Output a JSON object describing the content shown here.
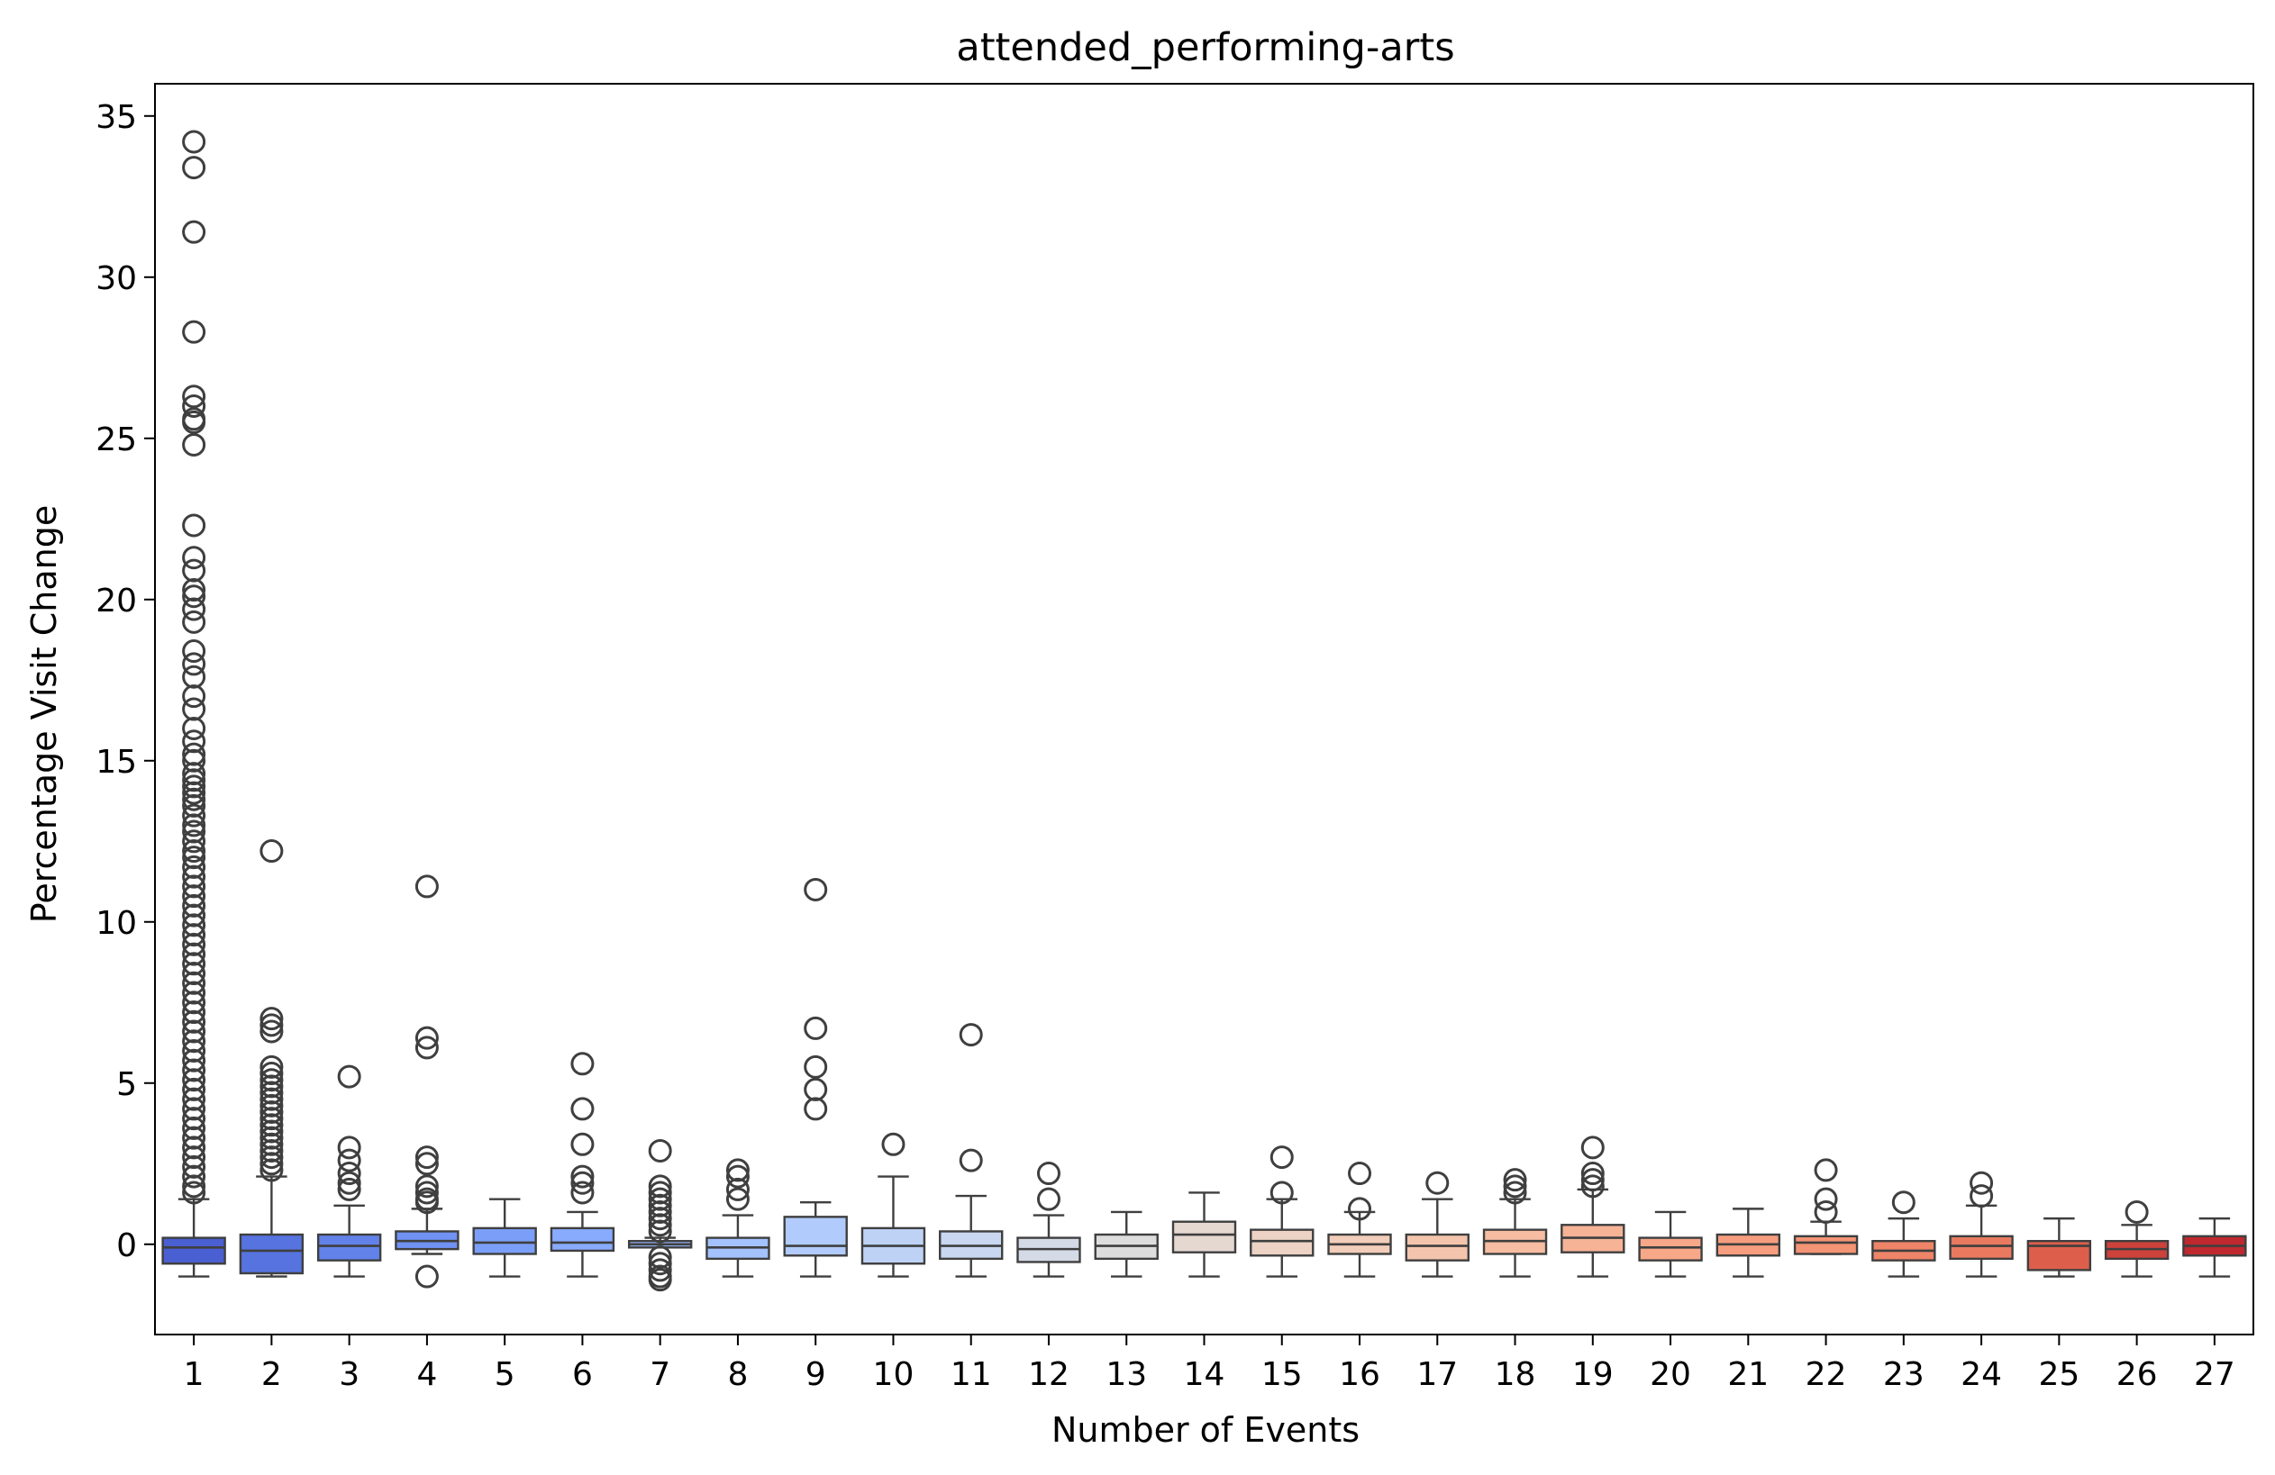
{
  "chart_data": {
    "type": "box",
    "title": "attended_performing-arts",
    "xlabel": "Number of Events",
    "ylabel": "Percentage Visit Change",
    "yticks": [
      0,
      5,
      10,
      15,
      20,
      25,
      30,
      35
    ],
    "ylim": [
      -2.8,
      36
    ],
    "grid": false,
    "legend": "none",
    "palette": "coolwarm",
    "categories": [
      "1",
      "2",
      "3",
      "4",
      "5",
      "6",
      "7",
      "8",
      "9",
      "10",
      "11",
      "12",
      "13",
      "14",
      "15",
      "16",
      "17",
      "18",
      "19",
      "20",
      "21",
      "22",
      "23",
      "24",
      "25",
      "26",
      "27"
    ],
    "boxes": [
      {
        "category": "1",
        "whisker_low": -1.0,
        "q1": -0.6,
        "median": -0.1,
        "q3": 0.2,
        "whisker_high": 1.4,
        "color": "#4a5fd1",
        "outliers": [
          34.2,
          33.4,
          31.4,
          28.3,
          26.3,
          26.0,
          25.6,
          25.5,
          24.8,
          22.3,
          21.3,
          20.9,
          20.3,
          20.1,
          19.7,
          19.3,
          18.4,
          18.0,
          17.6,
          17.0,
          16.6,
          16.0,
          15.6,
          15.2,
          15.0,
          14.6,
          14.4,
          14.2,
          14.0,
          13.8,
          13.6,
          13.3,
          13.0,
          12.8,
          12.5,
          12.2,
          12.0,
          11.7,
          11.4,
          11.1,
          10.8,
          10.5,
          10.2,
          9.9,
          9.6,
          9.3,
          9.0,
          8.7,
          8.4,
          8.1,
          7.8,
          7.5,
          7.2,
          6.9,
          6.6,
          6.3,
          6.0,
          5.7,
          5.4,
          5.1,
          4.8,
          4.5,
          4.2,
          3.9,
          3.6,
          3.3,
          3.0,
          2.7,
          2.4,
          2.1,
          1.8,
          1.6
        ]
      },
      {
        "category": "2",
        "whisker_low": -1.0,
        "q1": -0.9,
        "median": -0.2,
        "q3": 0.3,
        "whisker_high": 2.1,
        "color": "#5673e0",
        "outliers": [
          12.2,
          7.0,
          6.8,
          6.6,
          5.5,
          5.3,
          5.1,
          4.9,
          4.7,
          4.5,
          4.3,
          4.1,
          3.9,
          3.7,
          3.5,
          3.3,
          3.1,
          2.9,
          2.7,
          2.5,
          2.3
        ]
      },
      {
        "category": "3",
        "whisker_low": -1.0,
        "q1": -0.5,
        "median": -0.05,
        "q3": 0.3,
        "whisker_high": 1.2,
        "color": "#6282ea",
        "outliers": [
          5.2,
          3.0,
          2.6,
          2.2,
          1.9,
          1.7
        ]
      },
      {
        "category": "4",
        "whisker_low": -0.3,
        "q1": -0.15,
        "median": 0.1,
        "q3": 0.4,
        "whisker_high": 1.1,
        "color": "#6f92f3",
        "outliers": [
          11.1,
          6.4,
          6.1,
          2.7,
          2.5,
          1.8,
          1.6,
          1.4,
          1.3,
          -1.0
        ]
      },
      {
        "category": "5",
        "whisker_low": -1.0,
        "q1": -0.3,
        "median": 0.05,
        "q3": 0.5,
        "whisker_high": 1.4,
        "color": "#7b9ff9",
        "outliers": []
      },
      {
        "category": "6",
        "whisker_low": -1.0,
        "q1": -0.2,
        "median": 0.05,
        "q3": 0.5,
        "whisker_high": 1.0,
        "color": "#88abfd",
        "outliers": [
          5.6,
          4.2,
          3.1,
          2.1,
          1.9,
          1.6
        ]
      },
      {
        "category": "7",
        "whisker_low": -0.1,
        "q1": -0.1,
        "median": 0.0,
        "q3": 0.1,
        "whisker_high": 0.2,
        "color": "#96b7ff",
        "outliers": [
          2.9,
          1.8,
          1.6,
          1.4,
          1.2,
          1.0,
          0.8,
          0.6,
          0.4,
          -0.4,
          -0.6,
          -0.8,
          -1.0,
          -1.1
        ]
      },
      {
        "category": "8",
        "whisker_low": -1.0,
        "q1": -0.45,
        "median": -0.1,
        "q3": 0.2,
        "whisker_high": 0.9,
        "color": "#a3c2fe",
        "outliers": [
          2.3,
          2.1,
          1.7,
          1.4
        ]
      },
      {
        "category": "9",
        "whisker_low": -1.0,
        "q1": -0.35,
        "median": -0.05,
        "q3": 0.85,
        "whisker_high": 1.3,
        "color": "#b1cbfc",
        "outliers": [
          11.0,
          6.7,
          5.5,
          4.8,
          4.2
        ]
      },
      {
        "category": "10",
        "whisker_low": -1.0,
        "q1": -0.6,
        "median": -0.05,
        "q3": 0.5,
        "whisker_high": 2.1,
        "color": "#bed2f6",
        "outliers": [
          3.1
        ]
      },
      {
        "category": "11",
        "whisker_low": -1.0,
        "q1": -0.45,
        "median": -0.05,
        "q3": 0.4,
        "whisker_high": 1.5,
        "color": "#c9d7f0",
        "outliers": [
          6.5,
          2.6
        ]
      },
      {
        "category": "12",
        "whisker_low": -1.0,
        "q1": -0.55,
        "median": -0.15,
        "q3": 0.2,
        "whisker_high": 0.9,
        "color": "#d4dbe6",
        "outliers": [
          2.2,
          1.4
        ]
      },
      {
        "category": "13",
        "whisker_low": -1.0,
        "q1": -0.45,
        "median": -0.05,
        "q3": 0.3,
        "whisker_high": 1.0,
        "color": "#dddddd",
        "outliers": []
      },
      {
        "category": "14",
        "whisker_low": -1.0,
        "q1": -0.25,
        "median": 0.3,
        "q3": 0.7,
        "whisker_high": 1.6,
        "color": "#e5d8d1",
        "outliers": []
      },
      {
        "category": "15",
        "whisker_low": -1.0,
        "q1": -0.35,
        "median": 0.1,
        "q3": 0.45,
        "whisker_high": 1.4,
        "color": "#ecd3c5",
        "outliers": [
          2.7,
          1.6
        ]
      },
      {
        "category": "16",
        "whisker_low": -1.0,
        "q1": -0.3,
        "median": 0.0,
        "q3": 0.3,
        "whisker_high": 1.0,
        "color": "#f1cdba",
        "outliers": [
          2.2,
          1.1
        ]
      },
      {
        "category": "17",
        "whisker_low": -1.0,
        "q1": -0.5,
        "median": -0.05,
        "q3": 0.3,
        "whisker_high": 1.4,
        "color": "#f4c5ad",
        "outliers": [
          1.9
        ]
      },
      {
        "category": "18",
        "whisker_low": -1.0,
        "q1": -0.3,
        "median": 0.1,
        "q3": 0.45,
        "whisker_high": 1.4,
        "color": "#f6bda2",
        "outliers": [
          2.0,
          1.8,
          1.6
        ]
      },
      {
        "category": "19",
        "whisker_low": -1.0,
        "q1": -0.25,
        "median": 0.2,
        "q3": 0.6,
        "whisker_high": 1.7,
        "color": "#f7b396",
        "outliers": [
          3.0,
          2.2,
          2.0,
          1.8
        ]
      },
      {
        "category": "20",
        "whisker_low": -1.0,
        "q1": -0.5,
        "median": -0.1,
        "q3": 0.2,
        "whisker_high": 1.0,
        "color": "#f7a889",
        "outliers": []
      },
      {
        "category": "21",
        "whisker_low": -1.0,
        "q1": -0.35,
        "median": 0.0,
        "q3": 0.3,
        "whisker_high": 1.1,
        "color": "#f59d7e",
        "outliers": []
      },
      {
        "category": "22",
        "whisker_low": -0.3,
        "q1": -0.3,
        "median": 0.05,
        "q3": 0.25,
        "whisker_high": 0.7,
        "color": "#f39475",
        "outliers": [
          2.3,
          1.4,
          1.0
        ]
      },
      {
        "category": "23",
        "whisker_low": -1.0,
        "q1": -0.5,
        "median": -0.2,
        "q3": 0.1,
        "whisker_high": 0.8,
        "color": "#ee8468",
        "outliers": [
          1.3
        ]
      },
      {
        "category": "24",
        "whisker_low": -1.0,
        "q1": -0.45,
        "median": -0.05,
        "q3": 0.25,
        "whisker_high": 1.2,
        "color": "#e97a5f",
        "outliers": [
          1.9,
          1.5
        ]
      },
      {
        "category": "25",
        "whisker_low": -1.0,
        "q1": -0.8,
        "median": -0.05,
        "q3": 0.1,
        "whisker_high": 0.8,
        "color": "#dd5f4b",
        "outliers": []
      },
      {
        "category": "26",
        "whisker_low": -1.0,
        "q1": -0.45,
        "median": -0.15,
        "q3": 0.1,
        "whisker_high": 0.6,
        "color": "#cd423b",
        "outliers": [
          1.0
        ]
      },
      {
        "category": "27",
        "whisker_low": -1.0,
        "q1": -0.35,
        "median": -0.05,
        "q3": 0.25,
        "whisker_high": 0.8,
        "color": "#c0282f",
        "outliers": []
      }
    ],
    "colors": {
      "line": "#3f3f3f",
      "axis": "#000000",
      "background": "#ffffff"
    }
  }
}
